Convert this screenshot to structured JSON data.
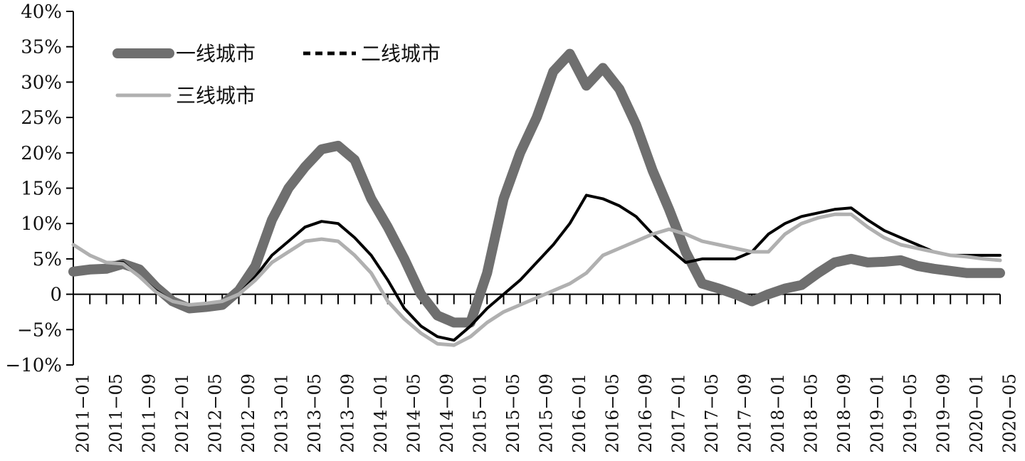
{
  "chart_data": {
    "type": "line",
    "title": "",
    "xlabel": "",
    "ylabel": "",
    "ylim": [
      -10,
      40
    ],
    "yticks": [
      -10,
      -5,
      0,
      5,
      10,
      15,
      20,
      25,
      30,
      35,
      40
    ],
    "ytick_labels": [
      "−10%",
      "−5%",
      "0",
      "5%",
      "10%",
      "15%",
      "20%",
      "25%",
      "30%",
      "35%",
      "40%"
    ],
    "x_tick_labels": [
      "2011−01",
      "2011−05",
      "2011−09",
      "2012−01",
      "2012−05",
      "2012−09",
      "2013−01",
      "2013−05",
      "2013−09",
      "2014−01",
      "2014−05",
      "2014−09",
      "2015−01",
      "2015−05",
      "2015−09",
      "2016−01",
      "2016−05",
      "2016−09",
      "2017−01",
      "2017−05",
      "2017−09",
      "2018−01",
      "2018−05",
      "2018−09",
      "2019−01",
      "2019−05",
      "2019−09",
      "2020−01",
      "2020−05"
    ],
    "grid": false,
    "legend_position": "top-left",
    "x": [
      "2011−01",
      "2011−03",
      "2011−05",
      "2011−07",
      "2011−09",
      "2011−11",
      "2012−01",
      "2012−03",
      "2012−05",
      "2012−07",
      "2012−09",
      "2012−11",
      "2013−01",
      "2013−03",
      "2013−05",
      "2013−07",
      "2013−09",
      "2013−11",
      "2014−01",
      "2014−03",
      "2014−05",
      "2014−07",
      "2014−09",
      "2014−11",
      "2015−01",
      "2015−03",
      "2015−05",
      "2015−07",
      "2015−09",
      "2015−11",
      "2016−01",
      "2016−03",
      "2016−05",
      "2016−07",
      "2016−09",
      "2016−11",
      "2017−01",
      "2017−03",
      "2017−05",
      "2017−07",
      "2017−09",
      "2017−11",
      "2018−01",
      "2018−03",
      "2018−05",
      "2018−07",
      "2018−09",
      "2018−11",
      "2019−01",
      "2019−03",
      "2019−05",
      "2019−07",
      "2019−09",
      "2019−11",
      "2020−01",
      "2020−03",
      "2020−05"
    ],
    "series": [
      {
        "name": "一线城市",
        "color": "#6f6f6f",
        "values": [
          3.2,
          3.5,
          3.6,
          4.3,
          3.5,
          1.0,
          -1.0,
          -2.0,
          -1.8,
          -1.5,
          0.5,
          4.0,
          10.5,
          15.0,
          18.0,
          20.5,
          21.0,
          19.0,
          13.5,
          9.5,
          5.0,
          0.0,
          -3.0,
          -4.0,
          -4.0,
          3.0,
          13.5,
          20.0,
          25.0,
          31.5,
          34.0,
          29.5,
          32.0,
          29.0,
          24.0,
          17.5,
          12.0,
          6.0,
          1.5,
          0.8,
          0.0,
          -1.0,
          0.0,
          0.8,
          1.3,
          3.0,
          4.5,
          5.0,
          4.5,
          4.6,
          4.8,
          4.0,
          3.6,
          3.3,
          3.0,
          3.0,
          3.0
        ]
      },
      {
        "name": "二线城市",
        "color": "#000000",
        "dash": "dashed",
        "values": [
          7.0,
          5.5,
          4.5,
          4.5,
          2.5,
          0.5,
          -1.0,
          -1.5,
          -1.3,
          -1.0,
          0.0,
          2.5,
          5.5,
          7.5,
          9.5,
          10.3,
          10.0,
          8.0,
          5.5,
          2.0,
          -2.0,
          -4.5,
          -6.0,
          -6.5,
          -4.5,
          -2.0,
          0.0,
          2.0,
          4.5,
          7.0,
          10.0,
          14.0,
          13.5,
          12.5,
          11.0,
          8.5,
          6.5,
          4.5,
          5.0,
          5.0,
          5.0,
          6.0,
          8.5,
          10.0,
          11.0,
          11.5,
          12.0,
          12.2,
          10.5,
          9.0,
          8.0,
          7.0,
          6.0,
          5.5,
          5.5,
          5.5,
          5.5
        ]
      },
      {
        "name": "三线城市",
        "color": "#b0b0b0",
        "values": [
          7.0,
          5.5,
          4.5,
          4.3,
          2.5,
          0.3,
          -1.0,
          -1.5,
          -1.3,
          -1.0,
          0.0,
          2.0,
          4.5,
          6.0,
          7.5,
          7.8,
          7.5,
          5.5,
          3.0,
          -1.0,
          -3.5,
          -5.5,
          -7.0,
          -7.2,
          -6.0,
          -4.0,
          -2.5,
          -1.5,
          -0.5,
          0.5,
          1.5,
          3.0,
          5.5,
          6.5,
          7.5,
          8.5,
          9.2,
          8.5,
          7.5,
          7.0,
          6.5,
          6.0,
          6.0,
          8.5,
          10.0,
          10.8,
          11.3,
          11.3,
          9.5,
          8.0,
          7.0,
          6.5,
          6.0,
          5.5,
          5.3,
          5.0,
          4.8
        ]
      }
    ]
  }
}
